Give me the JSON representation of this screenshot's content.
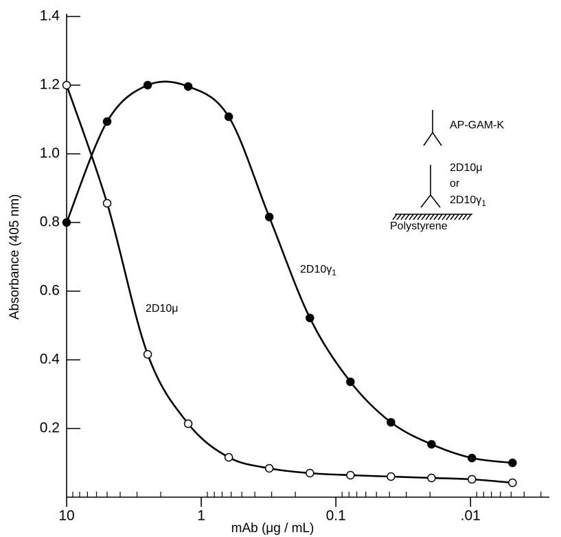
{
  "chart_data": {
    "type": "line",
    "x_label": "mAb (μg / mL)",
    "y_label": "Absorbance (405 nm)",
    "x": [
      10,
      5,
      2.5,
      1.25,
      0.625,
      0.3125,
      0.156,
      0.078,
      0.039,
      0.0195,
      0.00977,
      0.00488
    ],
    "series": [
      {
        "color": "#000000",
        "marker": "filled",
        "values": [
          0.8,
          1.094,
          1.2,
          1.196,
          1.108,
          0.816,
          0.522,
          0.336,
          0.218,
          0.154,
          0.114,
          0.1
        ]
      },
      {
        "color": "#000000",
        "marker": "open",
        "values": [
          1.2,
          0.856,
          0.416,
          0.214,
          0.116,
          0.084,
          0.07,
          0.064,
          0.06,
          0.056,
          0.052,
          0.042
        ]
      }
    ],
    "x_log": true,
    "xlim": [
      10,
      0.0026
    ],
    "xticks": [
      10,
      1,
      0.1,
      {
        "value": 0.01,
        "label": ".01"
      }
    ],
    "ylim": [
      0,
      1.4
    ],
    "yticks": [
      0.2,
      0.4,
      0.6,
      0.8,
      {
        "value": 1.0,
        "label": "1.0"
      },
      1.2,
      1.4
    ],
    "annotations": [
      {
        "text": "2D10μ",
        "series": 1
      },
      {
        "text": "2D10γ",
        "sub": "1",
        "series": 0
      }
    ],
    "inset": {
      "top_label": "AP-GAM-K",
      "mid_label_1": "2D10μ",
      "mid_label_or": "or",
      "mid_label_2": "2D10γ",
      "mid_label_2_sub": "1",
      "surface_label": "Polystyrene"
    }
  }
}
